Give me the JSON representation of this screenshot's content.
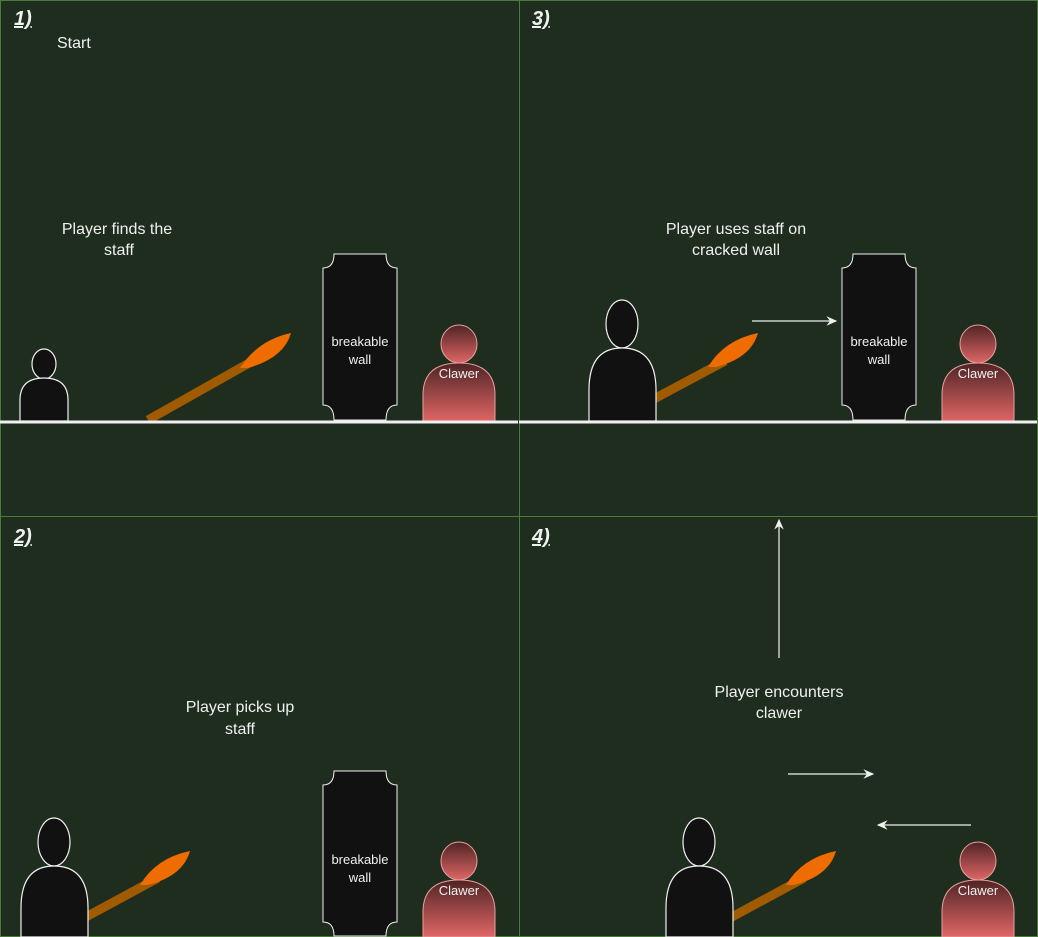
{
  "panels": [
    {
      "num": "1)",
      "start": "Start",
      "caption_l1": "Player finds the",
      "caption_l2": "staff"
    },
    {
      "num": "2)",
      "caption_l1": "Player picks up",
      "caption_l2": "staff"
    },
    {
      "num": "3)",
      "caption_l1": "Player uses staff on",
      "caption_l2": "cracked wall"
    },
    {
      "num": "4)",
      "caption_l1": "Player encounters",
      "caption_l2": "clawer"
    }
  ],
  "labels": {
    "wall_l1": "breakable",
    "wall_l2": "wall",
    "enemy": "Clawer"
  },
  "colors": {
    "background": "#1f2d1f",
    "grid": "#4a7a3a",
    "player": "#111111",
    "wall": "#111111",
    "staff_shaft": "#a05a00",
    "staff_flame": "#ef6c00",
    "enemy_top": "#5b2a2a",
    "enemy_bottom": "#e06666"
  }
}
